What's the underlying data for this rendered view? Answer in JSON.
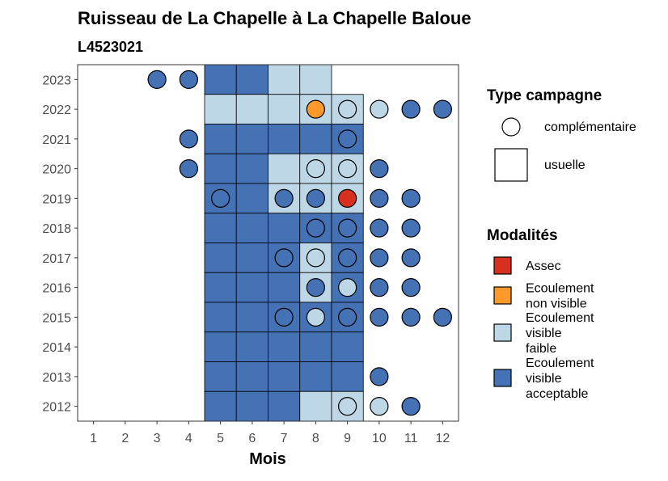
{
  "chart_data": {
    "type": "heatmap",
    "title": "Ruisseau de La Chapelle à La Chapelle Baloue",
    "subtitle": "L4523021",
    "xlabel": "Mois",
    "ylabel": "",
    "x_ticks": [
      1,
      2,
      3,
      4,
      5,
      6,
      7,
      8,
      9,
      10,
      11,
      12
    ],
    "y_ticks": [
      2012,
      2013,
      2014,
      2015,
      2016,
      2017,
      2018,
      2019,
      2020,
      2021,
      2022,
      2023
    ],
    "xlim": [
      0.5,
      12.5
    ],
    "ylim": [
      2011.5,
      2023.5
    ],
    "grid": false,
    "legend_placement": "right",
    "colors": {
      "Assec": "#d7301f",
      "Ecoulement non visible": "#fc992a",
      "Ecoulement visible faible": "#bdd7e7",
      "Ecoulement visible acceptable": "#4472b4"
    },
    "legend_type": {
      "title": "Type campagne",
      "items": [
        {
          "label": "complémentaire",
          "shape": "circle"
        },
        {
          "label": "usuelle",
          "shape": "square"
        }
      ]
    },
    "legend_modalites": {
      "title": "Modalités",
      "items": [
        {
          "key": "Assec",
          "lines": [
            "Assec"
          ]
        },
        {
          "key": "Ecoulement non visible",
          "lines": [
            "Ecoulement",
            "non visible"
          ]
        },
        {
          "key": "Ecoulement visible faible",
          "lines": [
            "Ecoulement",
            "visible",
            "faible"
          ]
        },
        {
          "key": "Ecoulement visible acceptable",
          "lines": [
            "Ecoulement",
            "visible",
            "acceptable"
          ]
        }
      ]
    },
    "usuelle": [
      {
        "year": 2023,
        "month": 5,
        "modalite": "Ecoulement visible acceptable"
      },
      {
        "year": 2023,
        "month": 6,
        "modalite": "Ecoulement visible acceptable"
      },
      {
        "year": 2023,
        "month": 7,
        "modalite": "Ecoulement visible faible"
      },
      {
        "year": 2023,
        "month": 8,
        "modalite": "Ecoulement visible faible"
      },
      {
        "year": 2022,
        "month": 5,
        "modalite": "Ecoulement visible faible"
      },
      {
        "year": 2022,
        "month": 6,
        "modalite": "Ecoulement visible faible"
      },
      {
        "year": 2022,
        "month": 7,
        "modalite": "Ecoulement visible faible"
      },
      {
        "year": 2022,
        "month": 8,
        "modalite": "Ecoulement visible faible"
      },
      {
        "year": 2022,
        "month": 9,
        "modalite": "Ecoulement visible faible"
      },
      {
        "year": 2021,
        "month": 5,
        "modalite": "Ecoulement visible acceptable"
      },
      {
        "year": 2021,
        "month": 6,
        "modalite": "Ecoulement visible acceptable"
      },
      {
        "year": 2021,
        "month": 7,
        "modalite": "Ecoulement visible acceptable"
      },
      {
        "year": 2021,
        "month": 8,
        "modalite": "Ecoulement visible acceptable"
      },
      {
        "year": 2021,
        "month": 9,
        "modalite": "Ecoulement visible acceptable"
      },
      {
        "year": 2020,
        "month": 5,
        "modalite": "Ecoulement visible acceptable"
      },
      {
        "year": 2020,
        "month": 6,
        "modalite": "Ecoulement visible acceptable"
      },
      {
        "year": 2020,
        "month": 7,
        "modalite": "Ecoulement visible faible"
      },
      {
        "year": 2020,
        "month": 8,
        "modalite": "Ecoulement visible faible"
      },
      {
        "year": 2020,
        "month": 9,
        "modalite": "Ecoulement visible faible"
      },
      {
        "year": 2019,
        "month": 5,
        "modalite": "Ecoulement visible acceptable"
      },
      {
        "year": 2019,
        "month": 6,
        "modalite": "Ecoulement visible acceptable"
      },
      {
        "year": 2019,
        "month": 7,
        "modalite": "Ecoulement visible faible"
      },
      {
        "year": 2019,
        "month": 8,
        "modalite": "Ecoulement visible faible"
      },
      {
        "year": 2019,
        "month": 9,
        "modalite": "Ecoulement visible faible"
      },
      {
        "year": 2018,
        "month": 5,
        "modalite": "Ecoulement visible acceptable"
      },
      {
        "year": 2018,
        "month": 6,
        "modalite": "Ecoulement visible acceptable"
      },
      {
        "year": 2018,
        "month": 7,
        "modalite": "Ecoulement visible acceptable"
      },
      {
        "year": 2018,
        "month": 8,
        "modalite": "Ecoulement visible acceptable"
      },
      {
        "year": 2018,
        "month": 9,
        "modalite": "Ecoulement visible acceptable"
      },
      {
        "year": 2017,
        "month": 5,
        "modalite": "Ecoulement visible acceptable"
      },
      {
        "year": 2017,
        "month": 6,
        "modalite": "Ecoulement visible acceptable"
      },
      {
        "year": 2017,
        "month": 7,
        "modalite": "Ecoulement visible acceptable"
      },
      {
        "year": 2017,
        "month": 8,
        "modalite": "Ecoulement visible faible"
      },
      {
        "year": 2017,
        "month": 9,
        "modalite": "Ecoulement visible acceptable"
      },
      {
        "year": 2016,
        "month": 5,
        "modalite": "Ecoulement visible acceptable"
      },
      {
        "year": 2016,
        "month": 6,
        "modalite": "Ecoulement visible acceptable"
      },
      {
        "year": 2016,
        "month": 7,
        "modalite": "Ecoulement visible acceptable"
      },
      {
        "year": 2016,
        "month": 8,
        "modalite": "Ecoulement visible faible"
      },
      {
        "year": 2016,
        "month": 9,
        "modalite": "Ecoulement visible acceptable"
      },
      {
        "year": 2015,
        "month": 5,
        "modalite": "Ecoulement visible acceptable"
      },
      {
        "year": 2015,
        "month": 6,
        "modalite": "Ecoulement visible acceptable"
      },
      {
        "year": 2015,
        "month": 7,
        "modalite": "Ecoulement visible acceptable"
      },
      {
        "year": 2015,
        "month": 8,
        "modalite": "Ecoulement visible acceptable"
      },
      {
        "year": 2015,
        "month": 9,
        "modalite": "Ecoulement visible acceptable"
      },
      {
        "year": 2014,
        "month": 5,
        "modalite": "Ecoulement visible acceptable"
      },
      {
        "year": 2014,
        "month": 6,
        "modalite": "Ecoulement visible acceptable"
      },
      {
        "year": 2014,
        "month": 7,
        "modalite": "Ecoulement visible acceptable"
      },
      {
        "year": 2014,
        "month": 8,
        "modalite": "Ecoulement visible acceptable"
      },
      {
        "year": 2014,
        "month": 9,
        "modalite": "Ecoulement visible acceptable"
      },
      {
        "year": 2013,
        "month": 5,
        "modalite": "Ecoulement visible acceptable"
      },
      {
        "year": 2013,
        "month": 6,
        "modalite": "Ecoulement visible acceptable"
      },
      {
        "year": 2013,
        "month": 7,
        "modalite": "Ecoulement visible acceptable"
      },
      {
        "year": 2013,
        "month": 8,
        "modalite": "Ecoulement visible acceptable"
      },
      {
        "year": 2013,
        "month": 9,
        "modalite": "Ecoulement visible acceptable"
      },
      {
        "year": 2012,
        "month": 5,
        "modalite": "Ecoulement visible acceptable"
      },
      {
        "year": 2012,
        "month": 6,
        "modalite": "Ecoulement visible acceptable"
      },
      {
        "year": 2012,
        "month": 7,
        "modalite": "Ecoulement visible acceptable"
      },
      {
        "year": 2012,
        "month": 8,
        "modalite": "Ecoulement visible faible"
      },
      {
        "year": 2012,
        "month": 9,
        "modalite": "Ecoulement visible faible"
      }
    ],
    "complementaire": [
      {
        "year": 2023,
        "month": 3,
        "modalite": "Ecoulement visible acceptable"
      },
      {
        "year": 2023,
        "month": 4,
        "modalite": "Ecoulement visible acceptable"
      },
      {
        "year": 2022,
        "month": 8,
        "modalite": "Ecoulement non visible"
      },
      {
        "year": 2022,
        "month": 9,
        "modalite": "Ecoulement visible faible"
      },
      {
        "year": 2022,
        "month": 10,
        "modalite": "Ecoulement visible faible"
      },
      {
        "year": 2022,
        "month": 11,
        "modalite": "Ecoulement visible acceptable"
      },
      {
        "year": 2022,
        "month": 12,
        "modalite": "Ecoulement visible acceptable"
      },
      {
        "year": 2021,
        "month": 4,
        "modalite": "Ecoulement visible acceptable"
      },
      {
        "year": 2021,
        "month": 9,
        "modalite": "Ecoulement visible acceptable"
      },
      {
        "year": 2020,
        "month": 4,
        "modalite": "Ecoulement visible acceptable"
      },
      {
        "year": 2020,
        "month": 8,
        "modalite": "Ecoulement visible faible"
      },
      {
        "year": 2020,
        "month": 9,
        "modalite": "Ecoulement visible faible"
      },
      {
        "year": 2020,
        "month": 10,
        "modalite": "Ecoulement visible acceptable"
      },
      {
        "year": 2019,
        "month": 5,
        "modalite": "Ecoulement visible acceptable"
      },
      {
        "year": 2019,
        "month": 7,
        "modalite": "Ecoulement visible acceptable"
      },
      {
        "year": 2019,
        "month": 8,
        "modalite": "Ecoulement visible acceptable"
      },
      {
        "year": 2019,
        "month": 9,
        "modalite": "Assec"
      },
      {
        "year": 2019,
        "month": 10,
        "modalite": "Ecoulement visible acceptable"
      },
      {
        "year": 2019,
        "month": 11,
        "modalite": "Ecoulement visible acceptable"
      },
      {
        "year": 2018,
        "month": 8,
        "modalite": "Ecoulement visible acceptable"
      },
      {
        "year": 2018,
        "month": 9,
        "modalite": "Ecoulement visible acceptable"
      },
      {
        "year": 2018,
        "month": 10,
        "modalite": "Ecoulement visible acceptable"
      },
      {
        "year": 2018,
        "month": 11,
        "modalite": "Ecoulement visible acceptable"
      },
      {
        "year": 2017,
        "month": 7,
        "modalite": "Ecoulement visible acceptable"
      },
      {
        "year": 2017,
        "month": 8,
        "modalite": "Ecoulement visible faible"
      },
      {
        "year": 2017,
        "month": 9,
        "modalite": "Ecoulement visible acceptable"
      },
      {
        "year": 2017,
        "month": 10,
        "modalite": "Ecoulement visible acceptable"
      },
      {
        "year": 2017,
        "month": 11,
        "modalite": "Ecoulement visible acceptable"
      },
      {
        "year": 2016,
        "month": 8,
        "modalite": "Ecoulement visible acceptable"
      },
      {
        "year": 2016,
        "month": 9,
        "modalite": "Ecoulement visible faible"
      },
      {
        "year": 2016,
        "month": 10,
        "modalite": "Ecoulement visible acceptable"
      },
      {
        "year": 2016,
        "month": 11,
        "modalite": "Ecoulement visible acceptable"
      },
      {
        "year": 2015,
        "month": 7,
        "modalite": "Ecoulement visible acceptable"
      },
      {
        "year": 2015,
        "month": 8,
        "modalite": "Ecoulement visible faible"
      },
      {
        "year": 2015,
        "month": 9,
        "modalite": "Ecoulement visible acceptable"
      },
      {
        "year": 2015,
        "month": 10,
        "modalite": "Ecoulement visible acceptable"
      },
      {
        "year": 2015,
        "month": 11,
        "modalite": "Ecoulement visible acceptable"
      },
      {
        "year": 2015,
        "month": 12,
        "modalite": "Ecoulement visible acceptable"
      },
      {
        "year": 2013,
        "month": 10,
        "modalite": "Ecoulement visible acceptable"
      },
      {
        "year": 2012,
        "month": 9,
        "modalite": "Ecoulement visible faible"
      },
      {
        "year": 2012,
        "month": 10,
        "modalite": "Ecoulement visible faible"
      },
      {
        "year": 2012,
        "month": 11,
        "modalite": "Ecoulement visible acceptable"
      }
    ]
  }
}
